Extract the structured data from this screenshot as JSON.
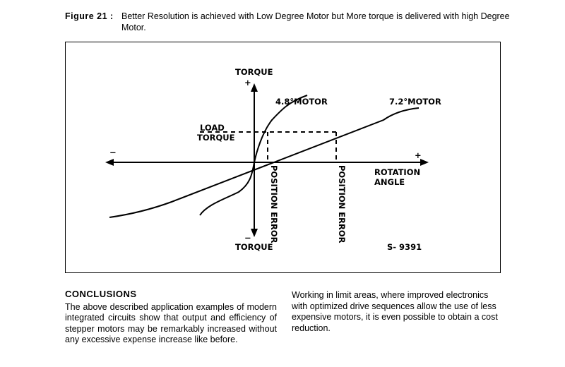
{
  "caption": {
    "label": "Figure 21 :",
    "text": "Better Resolution is achieved with Low Degree Motor but More torque is delivered with high Degree Motor."
  },
  "figure": {
    "labels": {
      "torque_top": "TORQUE",
      "torque_bottom": "TORQUE",
      "plus_y": "+",
      "minus_y": "−",
      "plus_x": "+",
      "minus_x": "−",
      "motor_48": "4.8°MOTOR",
      "motor_72": "7.2°MOTOR",
      "load_line1": "LOAD",
      "load_line2": "TORQUE",
      "pos_error1": "POSITION ERROR",
      "pos_error2": "POSITION ERROR",
      "rotation_line1": "ROTATION",
      "rotation_line2": "ANGLE",
      "code": "S- 9391"
    }
  },
  "conclusions": {
    "heading": "CONCLUSIONS",
    "text": "The above described application examples of modern integrated circuits show that output and efficiency of stepper motors may be remarkably increased without any excessive expense increase like before."
  },
  "right_column": {
    "text": "Working in limit areas, where improved electronics with optimized drive sequences allow the use of less expensive motors, it is even possible to obtain a cost reduction."
  }
}
